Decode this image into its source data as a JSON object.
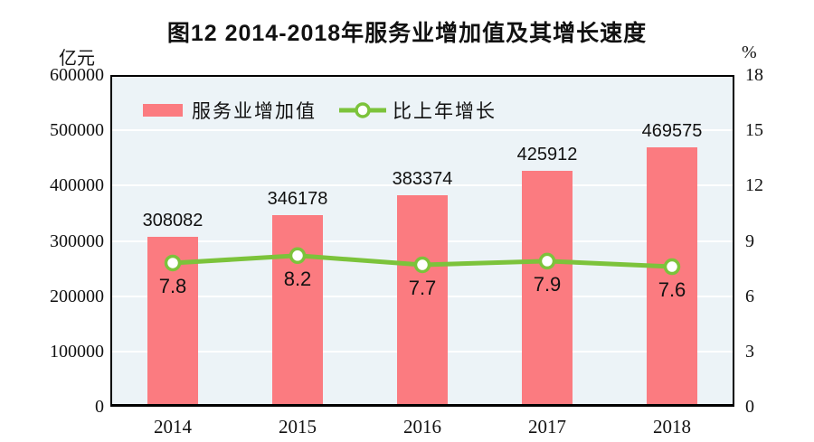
{
  "title": "图12  2014-2018年服务业增加值及其增长速度",
  "left_axis_unit": "亿元",
  "right_axis_unit": "%",
  "legend": {
    "bar_label": "服务业增加值",
    "line_label": "比上年增长"
  },
  "colors": {
    "bar": "#FB7B80",
    "line": "#7CC33B",
    "marker_fill": "#FFFFFF",
    "plot_bg": "#ECF3F7",
    "grid": "#FFFFFF",
    "frame": "#000000",
    "text": "#111111"
  },
  "chart_data": {
    "type": "bar",
    "categories": [
      "2014",
      "2015",
      "2016",
      "2017",
      "2018"
    ],
    "series": [
      {
        "name": "服务业增加值",
        "type": "bar",
        "axis": "left",
        "values": [
          308082,
          346178,
          383374,
          425912,
          469575
        ]
      },
      {
        "name": "比上年增长",
        "type": "line",
        "axis": "right",
        "values": [
          7.8,
          8.2,
          7.7,
          7.9,
          7.6
        ]
      }
    ],
    "title": "图12  2014-2018年服务业增加值及其增长速度",
    "xlabel": "",
    "ylabel_left": "亿元",
    "ylabel_right": "%",
    "left_axis": {
      "min": 0,
      "max": 600000,
      "ticks": [
        "0",
        "100000",
        "200000",
        "300000",
        "400000",
        "500000",
        "600000"
      ]
    },
    "right_axis": {
      "min": 0,
      "max": 18,
      "ticks": [
        "0",
        "3",
        "6",
        "9",
        "12",
        "15",
        "18"
      ]
    },
    "grid": true,
    "legend_position": "inside-top-left"
  }
}
